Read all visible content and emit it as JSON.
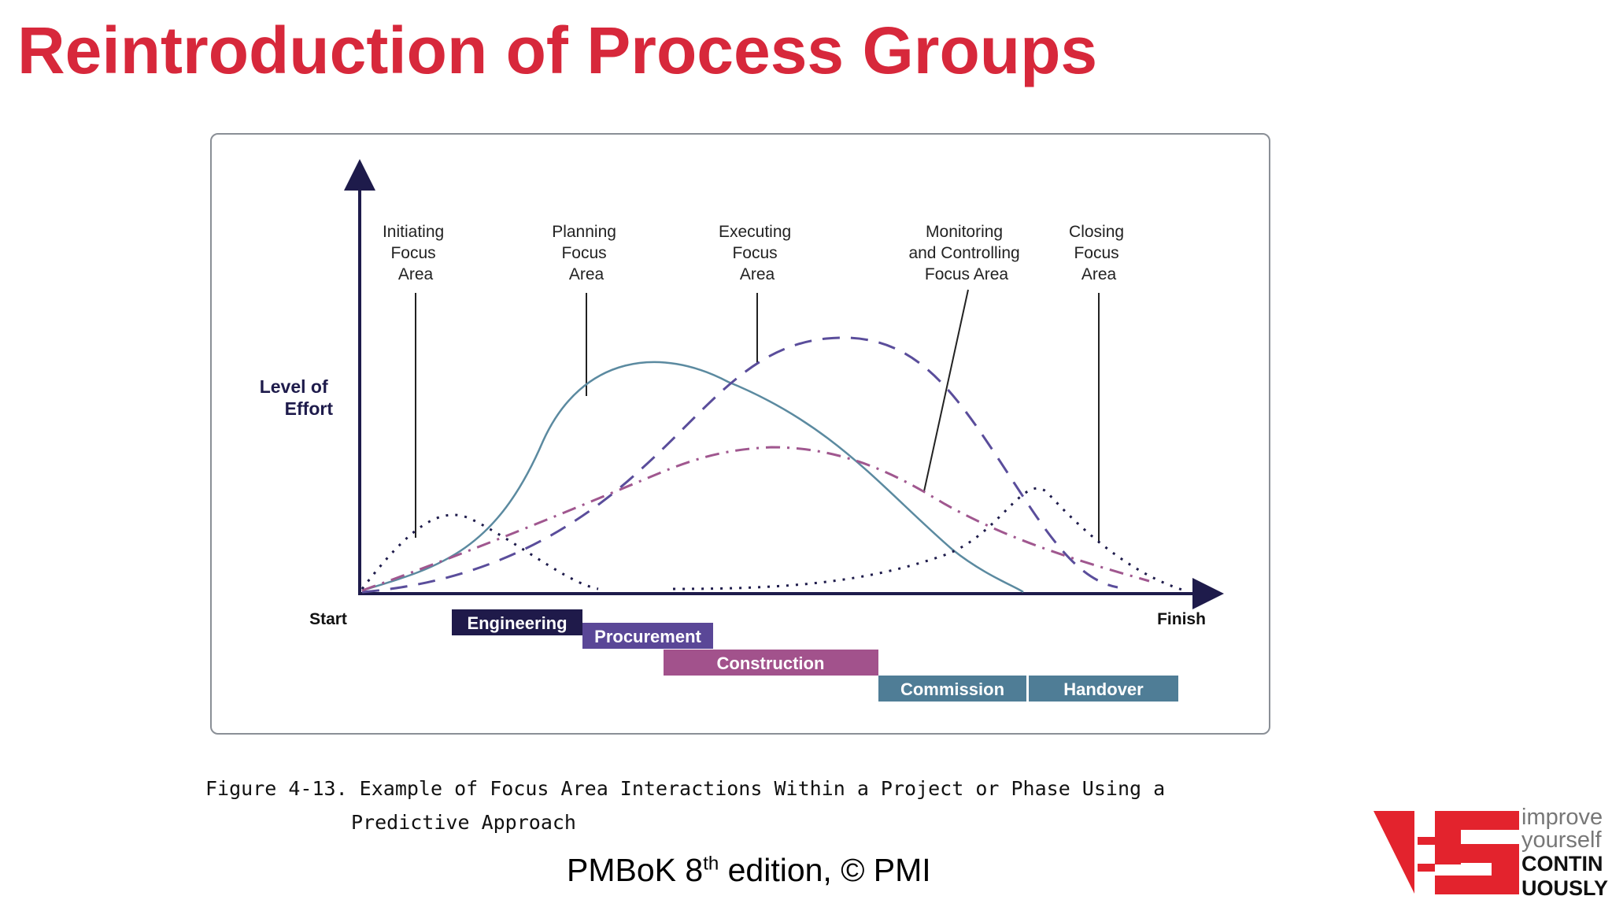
{
  "slide": {
    "title": "Reintroduction of Process Groups",
    "title_color": "#d7283b"
  },
  "diagram": {
    "y_axis_label": [
      "Level of",
      "Effort"
    ],
    "x_start_label": "Start",
    "x_finish_label": "Finish",
    "focus_areas": [
      {
        "lines": [
          "Initiating",
          "Focus",
          "Area"
        ],
        "line_style": "dotted",
        "color": "#1e1b4b"
      },
      {
        "lines": [
          "Planning",
          "Focus",
          "Area"
        ],
        "line_style": "solid",
        "color": "#5b8aa0"
      },
      {
        "lines": [
          "Executing",
          "Focus",
          "Area"
        ],
        "line_style": "dashed",
        "color": "#5a4d9b"
      },
      {
        "lines": [
          "Monitoring",
          "and Controlling",
          "Focus Area"
        ],
        "line_style": "dash-dot",
        "color": "#a0578f"
      },
      {
        "lines": [
          "Closing",
          "Focus",
          "Area"
        ],
        "line_style": "dotted",
        "color": "#1e1b4b"
      }
    ],
    "phases": [
      {
        "label": "Engineering",
        "color": "#1f1a4a"
      },
      {
        "label": "Procurement",
        "color": "#5a4797"
      },
      {
        "label": "Construction",
        "color": "#a2528c"
      },
      {
        "label": "Commission",
        "color": "#4f7d96"
      },
      {
        "label": "Handover",
        "color": "#4f7d96"
      }
    ],
    "axis_color": "#1e1b4b"
  },
  "caption": {
    "line1": "Figure 4-13. Example of Focus Area Interactions Within a Project or Phase Using a",
    "line2": "Predictive Approach"
  },
  "source": {
    "before": "PMBoK 8",
    "superscript": "th",
    "after": " edition, © PMI"
  },
  "logo": {
    "line1": "improve",
    "line2": "yourself",
    "line3": "CONTIN",
    "line4": "UOUSLY",
    "color": "#e3232d"
  }
}
